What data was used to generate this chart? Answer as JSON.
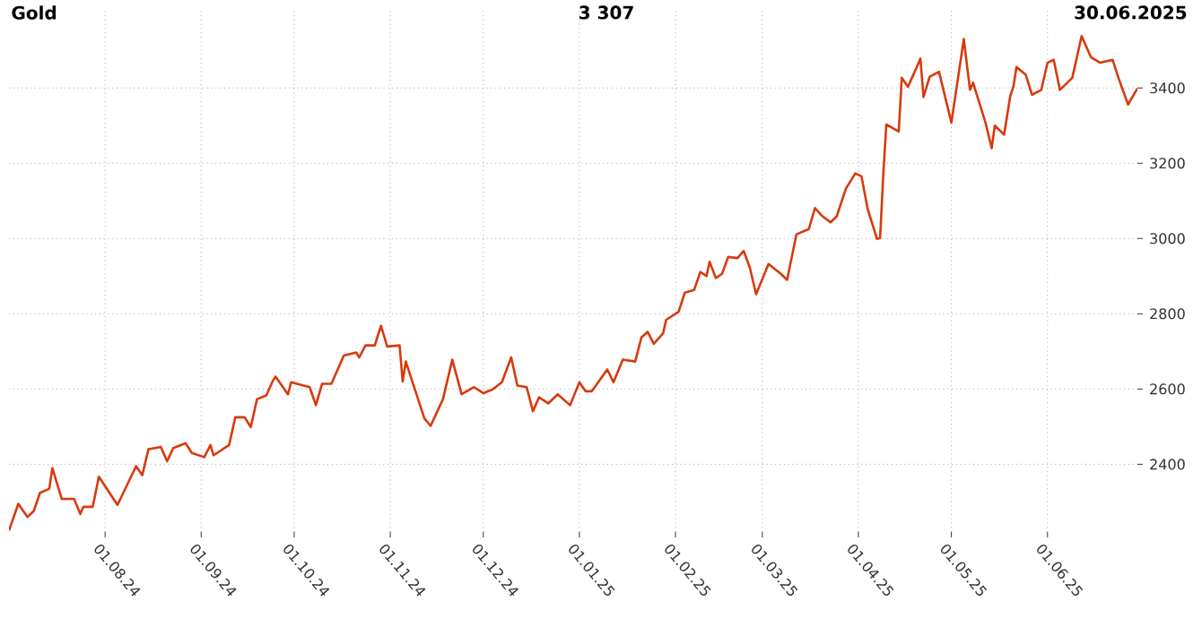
{
  "chart_data": {
    "type": "line",
    "title": "Gold",
    "annotations": [
      "3 307",
      "30.06.2025"
    ],
    "x": [
      "2024-07-01",
      "2024-07-04",
      "2024-07-07",
      "2024-07-09",
      "2024-07-11",
      "2024-07-14",
      "2024-07-15",
      "2024-07-18",
      "2024-07-22",
      "2024-07-24",
      "2024-07-25",
      "2024-07-28",
      "2024-07-30",
      "2024-08-05",
      "2024-08-11",
      "2024-08-13",
      "2024-08-15",
      "2024-08-19",
      "2024-08-21",
      "2024-08-23",
      "2024-08-27",
      "2024-08-29",
      "2024-09-02",
      "2024-09-04",
      "2024-09-05",
      "2024-09-10",
      "2024-09-12",
      "2024-09-15",
      "2024-09-17",
      "2024-09-19",
      "2024-09-22",
      "2024-09-24",
      "2024-09-25",
      "2024-09-29",
      "2024-09-30",
      "2024-10-06",
      "2024-10-08",
      "2024-10-10",
      "2024-10-13",
      "2024-10-17",
      "2024-10-21",
      "2024-10-22",
      "2024-10-24",
      "2024-10-27",
      "2024-10-29",
      "2024-10-31",
      "2024-11-04",
      "2024-11-05",
      "2024-11-06",
      "2024-11-12",
      "2024-11-14",
      "2024-11-18",
      "2024-11-21",
      "2024-11-24",
      "2024-11-28",
      "2024-12-01",
      "2024-12-04",
      "2024-12-07",
      "2024-12-10",
      "2024-12-12",
      "2024-12-15",
      "2024-12-17",
      "2024-12-19",
      "2024-12-22",
      "2024-12-25",
      "2024-12-29",
      "2025-01-01",
      "2025-01-03",
      "2025-01-05",
      "2025-01-10",
      "2025-01-12",
      "2025-01-15",
      "2025-01-19",
      "2025-01-21",
      "2025-01-23",
      "2025-01-25",
      "2025-01-28",
      "2025-01-29",
      "2025-02-02",
      "2025-02-04",
      "2025-02-07",
      "2025-02-09",
      "2025-02-11",
      "2025-02-12",
      "2025-02-14",
      "2025-02-16",
      "2025-02-18",
      "2025-02-21",
      "2025-02-23",
      "2025-02-25",
      "2025-02-27",
      "2025-03-03",
      "2025-03-07",
      "2025-03-09",
      "2025-03-12",
      "2025-03-16",
      "2025-03-18",
      "2025-03-20",
      "2025-03-23",
      "2025-03-25",
      "2025-03-28",
      "2025-03-31",
      "2025-04-02",
      "2025-04-04",
      "2025-04-07",
      "2025-04-08",
      "2025-04-09",
      "2025-04-10",
      "2025-04-14",
      "2025-04-15",
      "2025-04-17",
      "2025-04-21",
      "2025-04-22",
      "2025-04-24",
      "2025-04-27",
      "2025-05-01",
      "2025-05-05",
      "2025-05-07",
      "2025-05-08",
      "2025-05-12",
      "2025-05-14",
      "2025-05-15",
      "2025-05-18",
      "2025-05-20",
      "2025-05-21",
      "2025-05-22",
      "2025-05-25",
      "2025-05-27",
      "2025-05-30",
      "2025-06-01",
      "2025-06-03",
      "2025-06-05",
      "2025-06-09",
      "2025-06-12",
      "2025-06-15",
      "2025-06-18",
      "2025-06-22",
      "2025-06-24",
      "2025-06-27",
      "2025-06-30"
    ],
    "series": [
      {
        "color": "#d83a0c",
        "values": [
          2224,
          2295,
          2260,
          2276,
          2324,
          2335,
          2390,
          2308,
          2308,
          2268,
          2287,
          2287,
          2367,
          2292,
          2395,
          2371,
          2440,
          2446,
          2408,
          2443,
          2456,
          2430,
          2419,
          2451,
          2424,
          2451,
          2525,
          2525,
          2499,
          2573,
          2583,
          2620,
          2633,
          2586,
          2618,
          2605,
          2557,
          2614,
          2614,
          2689,
          2697,
          2684,
          2716,
          2716,
          2768,
          2713,
          2716,
          2620,
          2673,
          2522,
          2502,
          2573,
          2678,
          2586,
          2605,
          2589,
          2599,
          2618,
          2684,
          2609,
          2605,
          2541,
          2578,
          2562,
          2586,
          2557,
          2618,
          2594,
          2594,
          2652,
          2618,
          2678,
          2673,
          2737,
          2752,
          2720,
          2748,
          2784,
          2805,
          2856,
          2863,
          2911,
          2900,
          2938,
          2895,
          2906,
          2951,
          2948,
          2967,
          2922,
          2852,
          2932,
          2906,
          2890,
          3011,
          3025,
          3081,
          3062,
          3043,
          3059,
          3133,
          3173,
          3165,
          3078,
          2999,
          3001,
          3165,
          3303,
          3284,
          3427,
          3403,
          3478,
          3376,
          3430,
          3443,
          3308,
          3530,
          3395,
          3414,
          3308,
          3240,
          3300,
          3276,
          3379,
          3403,
          3456,
          3435,
          3382,
          3395,
          3467,
          3475,
          3395,
          3427,
          3538,
          3482,
          3467,
          3475,
          3424,
          3356,
          3399
        ]
      }
    ],
    "xlim": [
      "2024-07-01",
      "2025-06-30"
    ],
    "xticks": [
      {
        "value": "2024-08-01",
        "label": "01.08.24"
      },
      {
        "value": "2024-09-01",
        "label": "01.09.24"
      },
      {
        "value": "2024-10-01",
        "label": "01.10.24"
      },
      {
        "value": "2024-11-01",
        "label": "01.11.24"
      },
      {
        "value": "2024-12-01",
        "label": "01.12.24"
      },
      {
        "value": "2025-01-01",
        "label": "01.01.25"
      },
      {
        "value": "2025-02-01",
        "label": "01.02.25"
      },
      {
        "value": "2025-03-01",
        "label": "01.03.25"
      },
      {
        "value": "2025-04-01",
        "label": "01.04.25"
      },
      {
        "value": "2025-05-01",
        "label": "01.05.25"
      },
      {
        "value": "2025-06-01",
        "label": "01.06.25"
      }
    ],
    "ylim": [
      2220,
      3610
    ],
    "yticks": [
      2400,
      2600,
      2800,
      3000,
      3200,
      3400
    ],
    "grid": true,
    "marker": "none",
    "line_style": "solid"
  }
}
